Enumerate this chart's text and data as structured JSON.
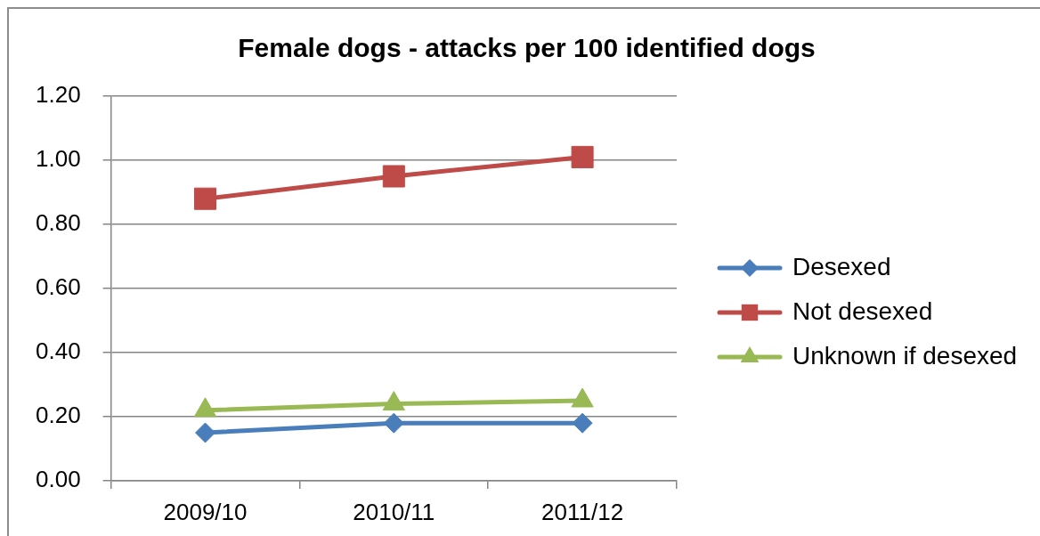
{
  "chart_data": {
    "type": "line",
    "title": "Female dogs - attacks per 100 identified dogs",
    "categories": [
      "2009/10",
      "2010/11",
      "2011/12"
    ],
    "series": [
      {
        "name": "Desexed",
        "color": "#4a7ebb",
        "values": [
          0.15,
          0.18,
          0.18
        ],
        "marker": "diamond"
      },
      {
        "name": "Not desexed",
        "color": "#be4b48",
        "values": [
          0.88,
          0.95,
          1.01
        ],
        "marker": "square"
      },
      {
        "name": "Unknown if desexed",
        "color": "#98b954",
        "values": [
          0.22,
          0.24,
          0.25
        ],
        "marker": "triangle"
      }
    ],
    "ylim": [
      0,
      1.2
    ],
    "yticks": [
      {
        "value": 0,
        "label": "0.00"
      },
      {
        "value": 0.2,
        "label": "0.20"
      },
      {
        "value": 0.4,
        "label": "0.40"
      },
      {
        "value": 0.6,
        "label": "0.60"
      },
      {
        "value": 0.8,
        "label": "0.80"
      },
      {
        "value": 1,
        "label": "1.00"
      },
      {
        "value": 1.2,
        "label": "1.20"
      }
    ],
    "grid": "y",
    "legend": "right"
  }
}
